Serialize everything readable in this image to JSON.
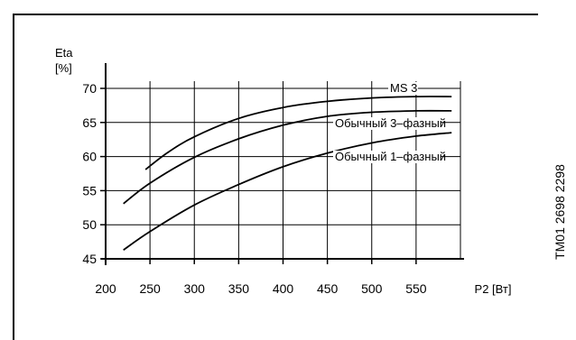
{
  "chart_data": {
    "type": "line",
    "y_axis_label": "Eta",
    "y_axis_unit": "[%]",
    "x_axis_label": "P2 [Вт]",
    "xlim": [
      200,
      600
    ],
    "ylim": [
      45,
      70
    ],
    "x_ticks": [
      200,
      250,
      300,
      350,
      400,
      450,
      500,
      550
    ],
    "y_ticks": [
      45,
      50,
      55,
      60,
      65,
      70
    ],
    "grid": true,
    "series": [
      {
        "name": "MS 3",
        "x": [
          245,
          270,
          300,
          350,
          400,
          450,
          500,
          550,
          590
        ],
        "y": [
          58.1,
          60.6,
          62.9,
          65.6,
          67.2,
          68.1,
          68.6,
          68.8,
          68.8
        ]
      },
      {
        "name": "Обычный 3–фазный",
        "x": [
          220,
          250,
          300,
          350,
          400,
          450,
          500,
          550,
          590
        ],
        "y": [
          53.1,
          56.1,
          59.9,
          62.6,
          64.6,
          65.9,
          66.5,
          66.7,
          66.7
        ]
      },
      {
        "name": "Обычный 1–фазный",
        "x": [
          220,
          250,
          300,
          350,
          400,
          450,
          500,
          550,
          590
        ],
        "y": [
          46.3,
          49.0,
          52.9,
          55.9,
          58.5,
          60.5,
          62.0,
          63.0,
          63.5
        ]
      }
    ]
  },
  "side_code": "TM01 2698 2298"
}
